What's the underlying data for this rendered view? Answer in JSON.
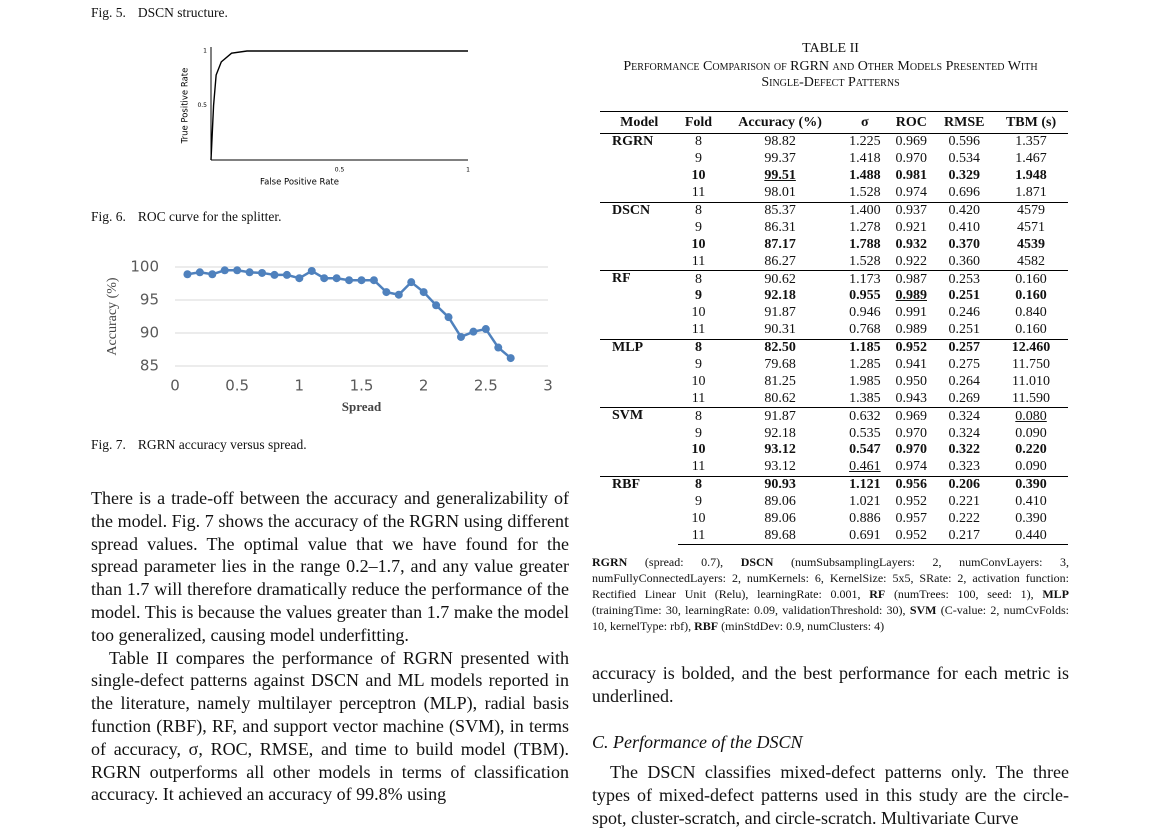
{
  "captions": [
    {
      "label": "Fig. 5.",
      "text": "DSCN structure."
    },
    {
      "label": "Fig. 6.",
      "text": "ROC curve for the splitter."
    },
    {
      "label": "Fig. 7.",
      "text": "RGRN accuracy versus spread."
    }
  ],
  "chart_data": [
    {
      "type": "line",
      "xlabel": "False Positive Rate",
      "ylabel": "True Positive Rate",
      "x": [
        0,
        0.01,
        0.02,
        0.04,
        0.08,
        0.14,
        1
      ],
      "series": [
        {
          "color": "#000000",
          "values": [
            0,
            0.5,
            0.78,
            0.9,
            0.98,
            1,
            1
          ]
        }
      ],
      "xlim": [
        0,
        1
      ],
      "ylim": [
        0,
        1
      ],
      "xticks": [
        0.5,
        1
      ],
      "yticks": [
        0.5,
        1
      ],
      "grid": false,
      "markers": false
    },
    {
      "type": "line",
      "xlabel": "Spread",
      "ylabel": "Accuracy (%)",
      "x": [
        0.1,
        0.2,
        0.3,
        0.4,
        0.5,
        0.6,
        0.7,
        0.8,
        0.9,
        1.0,
        1.1,
        1.2,
        1.3,
        1.4,
        1.5,
        1.6,
        1.7,
        1.8,
        1.9,
        2.0,
        2.1,
        2.2,
        2.3,
        2.4,
        2.5,
        2.6,
        2.7
      ],
      "series": [
        {
          "color": "#4f81bd",
          "values": [
            98.9,
            99.2,
            98.9,
            99.5,
            99.5,
            99.2,
            99.1,
            98.8,
            98.8,
            98.3,
            99.4,
            98.3,
            98.3,
            98.0,
            98.0,
            98.0,
            96.2,
            95.8,
            97.7,
            96.2,
            94.2,
            92.4,
            89.4,
            90.2,
            90.6,
            87.8,
            86.2
          ]
        }
      ],
      "xlim": [
        0,
        3
      ],
      "ylim": [
        85,
        100
      ],
      "xticks": [
        0,
        0.5,
        1,
        1.5,
        2,
        2.5,
        3
      ],
      "yticks": [
        85,
        90,
        95,
        100
      ],
      "grid": true,
      "markers": true
    }
  ],
  "table": {
    "title": "TABLE II",
    "caption": "Performance Comparison of RGRN and Other Models Presented With Single-Defect Patterns",
    "header": [
      "Model",
      "Fold",
      "Accuracy (%)",
      "σ",
      "ROC",
      "RMSE",
      "TBM (s)"
    ],
    "groups": [
      {
        "model": "RGRN",
        "bold_row": 2,
        "rows": [
          [
            "8",
            "98.82",
            "1.225",
            "0.969",
            "0.596",
            "1.357"
          ],
          [
            "9",
            "99.37",
            "1.418",
            "0.970",
            "0.534",
            "1.467"
          ],
          [
            "10",
            "99.51",
            "1.488",
            "0.981",
            "0.329",
            "1.948"
          ],
          [
            "11",
            "98.01",
            "1.528",
            "0.974",
            "0.696",
            "1.871"
          ]
        ]
      },
      {
        "model": "DSCN",
        "bold_row": 2,
        "rows": [
          [
            "8",
            "85.37",
            "1.400",
            "0.937",
            "0.420",
            "4579"
          ],
          [
            "9",
            "86.31",
            "1.278",
            "0.921",
            "0.410",
            "4571"
          ],
          [
            "10",
            "87.17",
            "1.788",
            "0.932",
            "0.370",
            "4539"
          ],
          [
            "11",
            "86.27",
            "1.528",
            "0.922",
            "0.360",
            "4582"
          ]
        ]
      },
      {
        "model": "RF",
        "bold_row": 1,
        "rows": [
          [
            "8",
            "90.62",
            "1.173",
            "0.987",
            "0.253",
            "0.160"
          ],
          [
            "9",
            "92.18",
            "0.955",
            "0.989",
            "0.251",
            "0.160"
          ],
          [
            "10",
            "91.87",
            "0.946",
            "0.991",
            "0.246",
            "0.840"
          ],
          [
            "11",
            "90.31",
            "0.768",
            "0.989",
            "0.251",
            "0.160"
          ]
        ]
      },
      {
        "model": "MLP",
        "bold_row": 0,
        "rows": [
          [
            "8",
            "82.50",
            "1.185",
            "0.952",
            "0.257",
            "12.460"
          ],
          [
            "9",
            "79.68",
            "1.285",
            "0.941",
            "0.275",
            "11.750"
          ],
          [
            "10",
            "81.25",
            "1.985",
            "0.950",
            "0.264",
            "11.010"
          ],
          [
            "11",
            "80.62",
            "1.385",
            "0.943",
            "0.269",
            "11.590"
          ]
        ]
      },
      {
        "model": "SVM",
        "bold_row": 2,
        "rows": [
          [
            "8",
            "91.87",
            "0.632",
            "0.969",
            "0.324",
            "0.080"
          ],
          [
            "9",
            "92.18",
            "0.535",
            "0.970",
            "0.324",
            "0.090"
          ],
          [
            "10",
            "93.12",
            "0.547",
            "0.970",
            "0.322",
            "0.220"
          ],
          [
            "11",
            "93.12",
            "0.461",
            "0.974",
            "0.323",
            "0.090"
          ]
        ]
      },
      {
        "model": "RBF",
        "bold_row": 0,
        "rows": [
          [
            "8",
            "90.93",
            "1.121",
            "0.956",
            "0.206",
            "0.390"
          ],
          [
            "9",
            "89.06",
            "1.021",
            "0.952",
            "0.221",
            "0.410"
          ],
          [
            "10",
            "89.06",
            "0.886",
            "0.957",
            "0.222",
            "0.390"
          ],
          [
            "11",
            "89.68",
            "0.691",
            "0.952",
            "0.217",
            "0.440"
          ]
        ]
      }
    ],
    "underline": [
      [
        0,
        2,
        1
      ],
      [
        2,
        1,
        3
      ],
      [
        4,
        0,
        5
      ],
      [
        4,
        3,
        2
      ]
    ],
    "footnote": [
      {
        "name": "RGRN",
        "text": "(spread: 0.7),"
      },
      {
        "name": "DSCN",
        "text": "(numSubsamplingLayers: 2, numConvLayers: 3, numFullyConnectedLayers: 2, numKernels: 6, KernelSize: 5x5, SRate: 2, activation function: Rectified Linear Unit (Relu), learningRate: 0.001,"
      },
      {
        "name": "RF",
        "text": "(numTrees: 100, seed: 1),"
      },
      {
        "name": "MLP",
        "text": "(trainingTime: 30, learningRate: 0.09, validationThreshold: 30),"
      },
      {
        "name": "SVM",
        "text": "(C-value: 2, numCvFolds: 10, kernelType: rbf),"
      },
      {
        "name": "RBF",
        "text": "(minStdDev: 0.9, numClusters: 4)"
      }
    ]
  },
  "left_body": [
    "There is a trade-off between the accuracy and generalizability of the model. Fig. 7 shows the accuracy of the RGRN using different spread values. The optimal value that we have found for the spread parameter lies in the range 0.2–1.7, and any value greater than 1.7 will therefore dramatically reduce the performance of the model. This is because the values greater than 1.7 make the model too generalized, causing model underfitting.",
    "Table II compares the performance of RGRN presented with single-defect patterns against DSCN and ML models reported in the literature, namely multilayer perceptron (MLP), radial basis function (RBF), RF, and support vector machine (SVM), in terms of accuracy, σ, ROC, RMSE, and time to build model (TBM). RGRN outperforms all other models in terms of classification accuracy. It achieved an accuracy of 99.8% using"
  ],
  "right_body": {
    "continuation": "accuracy is bolded, and the best performance for each metric is underlined.",
    "heading": "C. Performance of the DSCN",
    "paragraph": "The DSCN classifies mixed-defect patterns only. The three types of mixed-defect patterns used in this study are the circle-spot, cluster-scratch, and circle-scratch. Multivariate Curve"
  }
}
